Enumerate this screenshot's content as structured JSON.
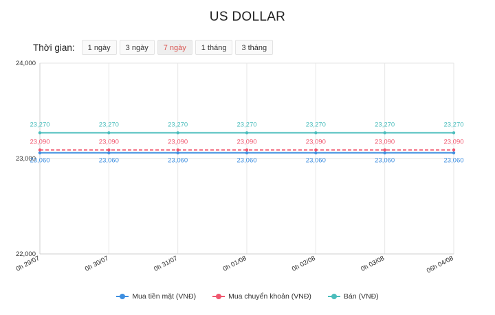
{
  "title": "US DOLLAR",
  "range": {
    "label": "Thời gian:",
    "options": [
      "1 ngày",
      "3 ngày",
      "7 ngày",
      "1 tháng",
      "3 tháng"
    ],
    "selected": "7 ngày"
  },
  "colors": {
    "buy_cash": "#3d8ee0",
    "buy_transfer": "#f0566e",
    "sell": "#4bbdbc",
    "grid": "#e6e6e6",
    "axis_text": "#333333"
  },
  "chart_data": {
    "type": "line",
    "title": "US DOLLAR",
    "x": [
      "0h 29/07",
      "0h 30/07",
      "0h 31/07",
      "0h 01/08",
      "0h 02/08",
      "0h 03/08",
      "06h 04/08"
    ],
    "ylim": [
      22000,
      24000
    ],
    "yticks": [
      22000,
      23000,
      24000
    ],
    "ytick_labels": [
      "22,000",
      "23,000",
      "24,000"
    ],
    "grid": true,
    "legend": "bottom",
    "series": [
      {
        "name": "Mua tiền mặt (VNĐ)",
        "key": "buy_cash",
        "values": [
          23060,
          23060,
          23060,
          23060,
          23060,
          23060,
          23060
        ],
        "labels": [
          "23,060",
          "23,060",
          "23,060",
          "23,060",
          "23,060",
          "23,060",
          "23,060"
        ],
        "dashed": false
      },
      {
        "name": "Mua chuyển khoản (VNĐ)",
        "key": "buy_transfer",
        "values": [
          23090,
          23090,
          23090,
          23090,
          23090,
          23090,
          23090
        ],
        "labels": [
          "23,090",
          "23,090",
          "23,090",
          "23,090",
          "23,090",
          "23,090",
          "23,090"
        ],
        "dashed": true
      },
      {
        "name": "Bán (VNĐ)",
        "key": "sell",
        "values": [
          23270,
          23270,
          23270,
          23270,
          23270,
          23270,
          23270
        ],
        "labels": [
          "23,270",
          "23,270",
          "23,270",
          "23,270",
          "23,270",
          "23,270",
          "23,270"
        ],
        "dashed": false
      }
    ]
  }
}
